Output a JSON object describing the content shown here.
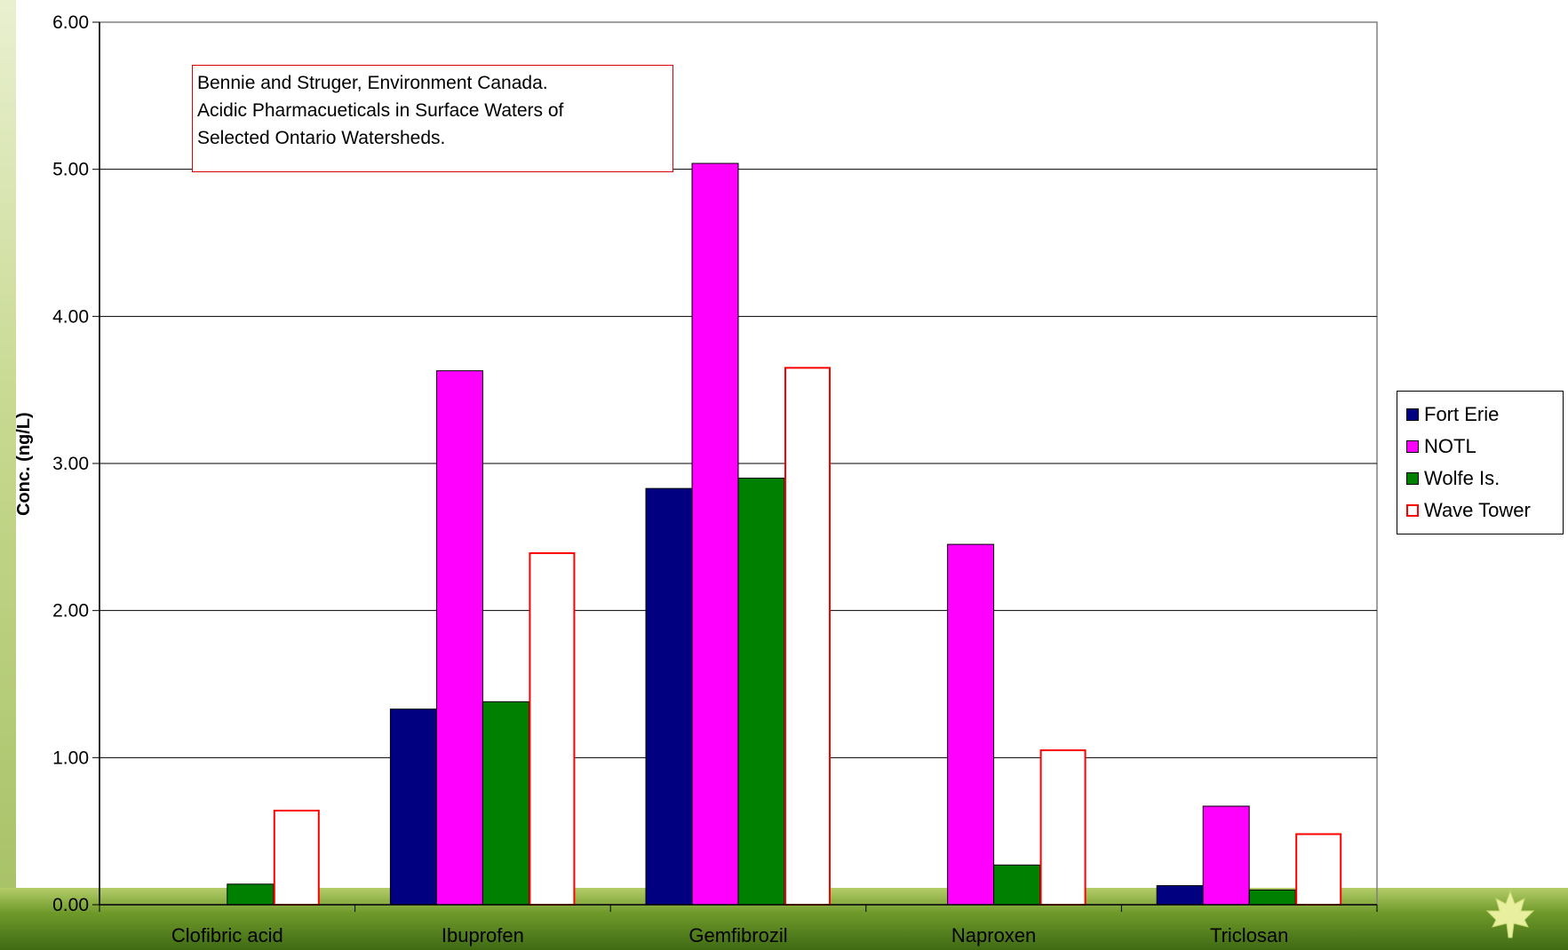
{
  "chart_data": {
    "type": "bar",
    "title": "",
    "xlabel": "",
    "ylabel": "Conc. (ng/L)",
    "ylim": [
      0,
      6
    ],
    "yticks": [
      "0.00",
      "1.00",
      "2.00",
      "3.00",
      "4.00",
      "5.00",
      "6.00"
    ],
    "grid": true,
    "legend_position": "right",
    "categories": [
      "Clofibric acid",
      "Ibuprofen",
      "Gemfibrozil",
      "Naproxen",
      "Triclosan"
    ],
    "series": [
      {
        "name": "Fort Erie",
        "values": [
          0,
          1.33,
          2.83,
          0,
          0.13
        ],
        "color": "#000080",
        "style": "filled"
      },
      {
        "name": "NOTL",
        "values": [
          0,
          3.63,
          5.04,
          2.45,
          0.67
        ],
        "color": "#ff00ff",
        "style": "filled"
      },
      {
        "name": "Wolfe Is.",
        "values": [
          0.14,
          1.38,
          2.9,
          0.27,
          0.1
        ],
        "color": "#008000",
        "style": "filled"
      },
      {
        "name": "Wave Tower",
        "values": [
          0.64,
          2.39,
          3.65,
          1.05,
          0.48
        ],
        "color": "#ff0000",
        "style": "outline"
      }
    ],
    "annotation": [
      "Bennie and Struger,  Environment Canada.",
      "Acidic Pharmacueticals in Surface Waters of",
      "Selected Ontario Watersheds."
    ]
  }
}
